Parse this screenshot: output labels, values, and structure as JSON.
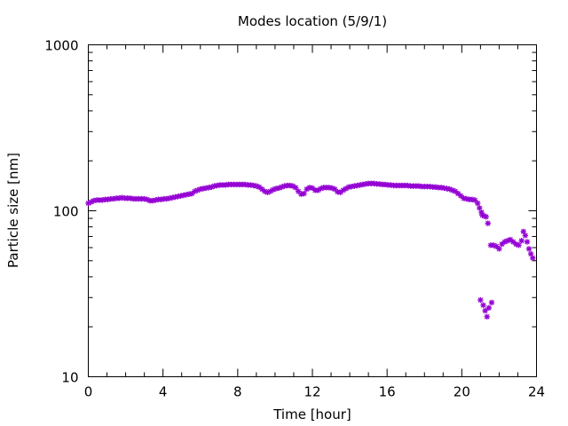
{
  "chart_data": {
    "type": "scatter",
    "title": "Modes location (5/9/1)",
    "xlabel": "Time [hour]",
    "ylabel": "Particle size [nm]",
    "xlim": [
      0,
      24
    ],
    "ylim": [
      10,
      1000
    ],
    "yscale": "log",
    "x_ticks": [
      0,
      4,
      8,
      12,
      16,
      20,
      24
    ],
    "x_tick_labels": [
      "0",
      "4",
      "8",
      "12",
      "16",
      "20",
      "24"
    ],
    "y_ticks": [
      10,
      100,
      1000
    ],
    "y_tick_labels": [
      "10",
      "100",
      "1000"
    ],
    "grid": false,
    "marker_color": "#9400d3",
    "marker": "asterisk",
    "series": [
      {
        "points": [
          [
            0.0,
            111
          ],
          [
            0.15,
            113
          ],
          [
            0.3,
            115
          ],
          [
            0.45,
            116
          ],
          [
            0.6,
            116
          ],
          [
            0.75,
            116
          ],
          [
            0.9,
            117
          ],
          [
            1.05,
            117
          ],
          [
            1.2,
            118
          ],
          [
            1.35,
            118
          ],
          [
            1.5,
            119
          ],
          [
            1.65,
            119
          ],
          [
            1.8,
            120
          ],
          [
            1.95,
            119
          ],
          [
            2.1,
            119
          ],
          [
            2.25,
            119
          ],
          [
            2.4,
            118
          ],
          [
            2.55,
            118
          ],
          [
            2.7,
            118
          ],
          [
            2.85,
            118
          ],
          [
            3.0,
            118
          ],
          [
            3.15,
            117
          ],
          [
            3.3,
            115
          ],
          [
            3.45,
            115
          ],
          [
            3.6,
            116
          ],
          [
            3.75,
            117
          ],
          [
            3.9,
            117
          ],
          [
            4.05,
            118
          ],
          [
            4.2,
            118
          ],
          [
            4.35,
            119
          ],
          [
            4.5,
            120
          ],
          [
            4.65,
            121
          ],
          [
            4.8,
            122
          ],
          [
            4.95,
            123
          ],
          [
            5.1,
            124
          ],
          [
            5.25,
            125
          ],
          [
            5.4,
            126
          ],
          [
            5.55,
            127
          ],
          [
            5.7,
            131
          ],
          [
            5.85,
            133
          ],
          [
            6.0,
            135
          ],
          [
            6.15,
            136
          ],
          [
            6.3,
            137
          ],
          [
            6.45,
            138
          ],
          [
            6.6,
            139
          ],
          [
            6.75,
            141
          ],
          [
            6.9,
            142
          ],
          [
            7.05,
            143
          ],
          [
            7.2,
            143
          ],
          [
            7.35,
            143
          ],
          [
            7.5,
            144
          ],
          [
            7.65,
            144
          ],
          [
            7.8,
            144
          ],
          [
            7.95,
            144
          ],
          [
            8.1,
            144
          ],
          [
            8.25,
            144
          ],
          [
            8.4,
            144
          ],
          [
            8.55,
            143
          ],
          [
            8.7,
            143
          ],
          [
            8.85,
            142
          ],
          [
            9.0,
            141
          ],
          [
            9.15,
            139
          ],
          [
            9.3,
            135
          ],
          [
            9.45,
            131
          ],
          [
            9.6,
            129
          ],
          [
            9.75,
            131
          ],
          [
            9.9,
            134
          ],
          [
            10.05,
            136
          ],
          [
            10.2,
            137
          ],
          [
            10.35,
            139
          ],
          [
            10.5,
            141
          ],
          [
            10.65,
            142
          ],
          [
            10.8,
            142
          ],
          [
            10.95,
            141
          ],
          [
            11.1,
            138
          ],
          [
            11.25,
            131
          ],
          [
            11.4,
            126
          ],
          [
            11.55,
            127
          ],
          [
            11.7,
            135
          ],
          [
            11.85,
            138
          ],
          [
            12.0,
            137
          ],
          [
            12.15,
            133
          ],
          [
            12.3,
            133
          ],
          [
            12.45,
            136
          ],
          [
            12.6,
            138
          ],
          [
            12.75,
            138
          ],
          [
            12.9,
            138
          ],
          [
            13.05,
            137
          ],
          [
            13.2,
            135
          ],
          [
            13.35,
            130
          ],
          [
            13.5,
            129
          ],
          [
            13.65,
            133
          ],
          [
            13.8,
            136
          ],
          [
            13.95,
            139
          ],
          [
            14.1,
            140
          ],
          [
            14.25,
            141
          ],
          [
            14.4,
            142
          ],
          [
            14.55,
            143
          ],
          [
            14.7,
            144
          ],
          [
            14.85,
            145
          ],
          [
            15.0,
            146
          ],
          [
            15.15,
            146
          ],
          [
            15.3,
            146
          ],
          [
            15.45,
            145
          ],
          [
            15.6,
            145
          ],
          [
            15.75,
            144
          ],
          [
            15.9,
            144
          ],
          [
            16.05,
            143
          ],
          [
            16.2,
            143
          ],
          [
            16.35,
            142
          ],
          [
            16.5,
            142
          ],
          [
            16.65,
            142
          ],
          [
            16.8,
            142
          ],
          [
            16.95,
            142
          ],
          [
            17.1,
            142
          ],
          [
            17.25,
            141
          ],
          [
            17.4,
            141
          ],
          [
            17.55,
            141
          ],
          [
            17.7,
            141
          ],
          [
            17.85,
            140
          ],
          [
            18.0,
            140
          ],
          [
            18.15,
            140
          ],
          [
            18.3,
            140
          ],
          [
            18.45,
            139
          ],
          [
            18.6,
            139
          ],
          [
            18.75,
            138
          ],
          [
            18.9,
            138
          ],
          [
            19.05,
            137
          ],
          [
            19.2,
            136
          ],
          [
            19.35,
            135
          ],
          [
            19.5,
            133
          ],
          [
            19.65,
            131
          ],
          [
            19.8,
            127
          ],
          [
            19.95,
            123
          ],
          [
            20.1,
            119
          ],
          [
            20.25,
            118
          ],
          [
            20.4,
            117
          ],
          [
            20.55,
            117
          ],
          [
            20.7,
            116
          ],
          [
            20.85,
            111
          ],
          [
            20.95,
            104
          ],
          [
            21.05,
            98
          ],
          [
            21.1,
            94
          ],
          [
            21.2,
            93
          ],
          [
            21.3,
            92
          ],
          [
            21.4,
            84
          ],
          [
            21.55,
            62
          ],
          [
            21.7,
            62
          ],
          [
            21.85,
            61
          ],
          [
            22.0,
            59
          ],
          [
            22.15,
            63
          ],
          [
            22.3,
            65
          ],
          [
            22.45,
            66
          ],
          [
            22.6,
            67
          ],
          [
            22.75,
            65
          ],
          [
            22.9,
            63
          ],
          [
            23.05,
            62
          ],
          [
            23.2,
            66
          ],
          [
            23.3,
            75
          ],
          [
            23.4,
            71
          ],
          [
            23.5,
            65
          ],
          [
            23.6,
            59
          ],
          [
            23.7,
            55
          ],
          [
            23.8,
            52
          ],
          [
            21.0,
            29
          ],
          [
            21.15,
            27
          ],
          [
            21.25,
            25
          ],
          [
            21.35,
            23
          ],
          [
            21.45,
            26
          ],
          [
            21.6,
            28
          ]
        ]
      }
    ]
  }
}
